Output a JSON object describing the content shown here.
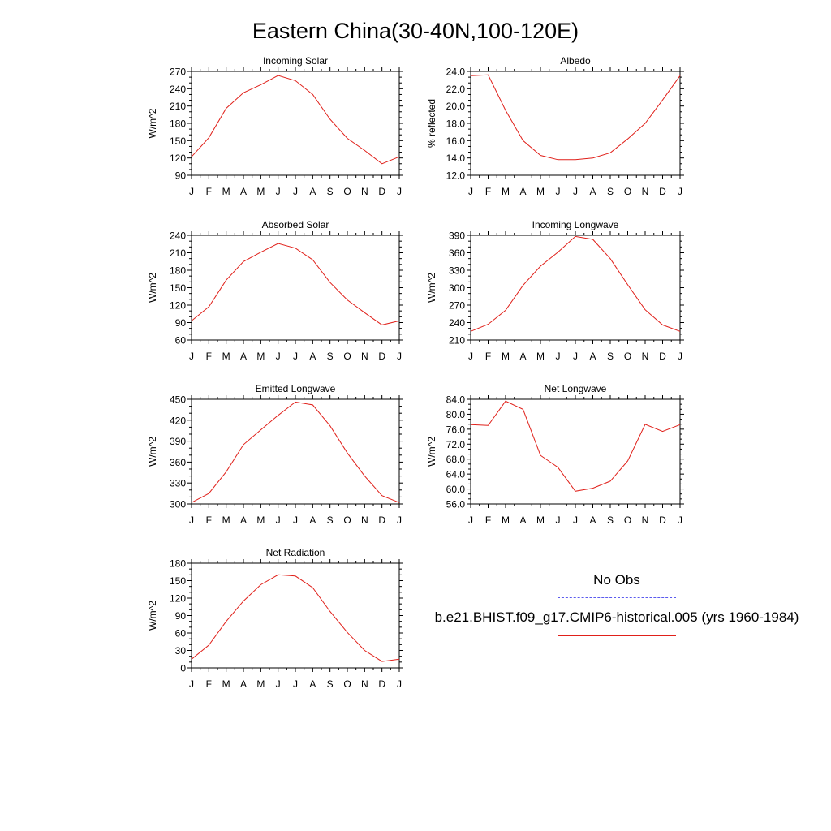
{
  "figure": {
    "title": "Eastern China(30-40N,100-120E)"
  },
  "legend": {
    "entries": [
      {
        "label": "No Obs",
        "color": "#5a5aee",
        "style": "dashed"
      },
      {
        "label": "b.e21.BHIST.f09_g17.CMIP6-historical.005 (yrs 1960-1984)",
        "color": "#e0201a",
        "style": "solid"
      }
    ]
  },
  "chart_data": [
    {
      "type": "line",
      "title": "Incoming Solar",
      "ylabel": "W/m^2",
      "xlabel": "",
      "categories": [
        "J",
        "F",
        "M",
        "A",
        "M",
        "J",
        "J",
        "A",
        "S",
        "O",
        "N",
        "D",
        "J"
      ],
      "ylim": [
        90,
        270
      ],
      "yticks": [
        "90",
        "120",
        "150",
        "180",
        "210",
        "240",
        "270"
      ],
      "series": [
        {
          "values": [
            122,
            155,
            206,
            233,
            247,
            263,
            254,
            230,
            187,
            154,
            133,
            110,
            122
          ],
          "color": "#e0201a"
        }
      ]
    },
    {
      "type": "line",
      "title": "Albedo",
      "ylabel": "% reflected",
      "xlabel": "",
      "categories": [
        "J",
        "F",
        "M",
        "A",
        "M",
        "J",
        "J",
        "A",
        "S",
        "O",
        "N",
        "D",
        "J"
      ],
      "ylim": [
        12.0,
        24.0
      ],
      "yticks": [
        "12.0",
        "14.0",
        "16.0",
        "18.0",
        "20.0",
        "22.0",
        "24.0"
      ],
      "series": [
        {
          "values": [
            23.5,
            23.6,
            19.5,
            16.0,
            14.3,
            13.8,
            13.8,
            14.0,
            14.6,
            16.2,
            18.0,
            20.7,
            23.5
          ],
          "color": "#e0201a"
        }
      ]
    },
    {
      "type": "line",
      "title": "Absorbed Solar",
      "ylabel": "W/m^2",
      "xlabel": "",
      "categories": [
        "J",
        "F",
        "M",
        "A",
        "M",
        "J",
        "J",
        "A",
        "S",
        "O",
        "N",
        "D",
        "J"
      ],
      "ylim": [
        60,
        240
      ],
      "yticks": [
        "60",
        "90",
        "120",
        "150",
        "180",
        "210",
        "240"
      ],
      "series": [
        {
          "values": [
            93,
            117,
            163,
            195,
            211,
            226,
            218,
            198,
            159,
            129,
            107,
            86,
            93
          ],
          "color": "#e0201a"
        }
      ]
    },
    {
      "type": "line",
      "title": "Incoming Longwave",
      "ylabel": "W/m^2",
      "xlabel": "",
      "categories": [
        "J",
        "F",
        "M",
        "A",
        "M",
        "J",
        "J",
        "A",
        "S",
        "O",
        "N",
        "D",
        "J"
      ],
      "ylim": [
        210,
        390
      ],
      "yticks": [
        "210",
        "240",
        "270",
        "300",
        "330",
        "360",
        "390"
      ],
      "series": [
        {
          "values": [
            225,
            237,
            261,
            304,
            337,
            361,
            388,
            383,
            350,
            305,
            262,
            236,
            225
          ],
          "color": "#e0201a"
        }
      ]
    },
    {
      "type": "line",
      "title": "Emitted Longwave",
      "ylabel": "W/m^2",
      "xlabel": "",
      "categories": [
        "J",
        "F",
        "M",
        "A",
        "M",
        "J",
        "J",
        "A",
        "S",
        "O",
        "N",
        "D",
        "J"
      ],
      "ylim": [
        300,
        450
      ],
      "yticks": [
        "300",
        "330",
        "360",
        "390",
        "420",
        "450"
      ],
      "series": [
        {
          "values": [
            302,
            315,
            346,
            385,
            406,
            427,
            446,
            442,
            412,
            373,
            340,
            312,
            302
          ],
          "color": "#e0201a"
        }
      ]
    },
    {
      "type": "line",
      "title": "Net Longwave",
      "ylabel": "W/m^2",
      "xlabel": "",
      "categories": [
        "J",
        "F",
        "M",
        "A",
        "M",
        "J",
        "J",
        "A",
        "S",
        "O",
        "N",
        "D",
        "J"
      ],
      "ylim": [
        56.0,
        84.0
      ],
      "yticks": [
        "56.0",
        "60.0",
        "64.0",
        "68.0",
        "72.0",
        "76.0",
        "80.0",
        "84.0"
      ],
      "series": [
        {
          "values": [
            77.2,
            77.0,
            83.5,
            81.3,
            69.0,
            65.8,
            59.4,
            60.2,
            62.1,
            67.5,
            77.3,
            75.4,
            77.2
          ],
          "color": "#e0201a"
        }
      ]
    },
    {
      "type": "line",
      "title": "Net Radiation",
      "ylabel": "W/m^2",
      "xlabel": "",
      "categories": [
        "J",
        "F",
        "M",
        "A",
        "M",
        "J",
        "J",
        "A",
        "S",
        "O",
        "N",
        "D",
        "J"
      ],
      "ylim": [
        0,
        180
      ],
      "yticks": [
        "0",
        "30",
        "60",
        "90",
        "120",
        "150",
        "180"
      ],
      "series": [
        {
          "values": [
            15,
            39,
            80,
            115,
            143,
            160,
            158,
            138,
            97,
            61,
            30,
            11,
            15
          ],
          "color": "#e0201a"
        }
      ]
    }
  ]
}
